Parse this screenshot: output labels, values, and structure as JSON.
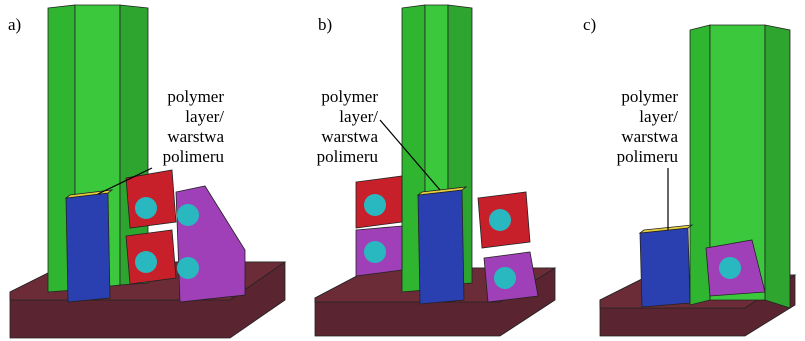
{
  "panels": [
    {
      "label": "a)",
      "annotation": [
        "polymer",
        "layer/",
        "warstwa",
        "polimeru"
      ]
    },
    {
      "label": "b)",
      "annotation": [
        "polymer",
        "layer/",
        "warstwa",
        "polimeru"
      ]
    },
    {
      "label": "c)",
      "annotation": [
        "polymer",
        "layer/",
        "warstwa",
        "polimeru"
      ]
    }
  ]
}
